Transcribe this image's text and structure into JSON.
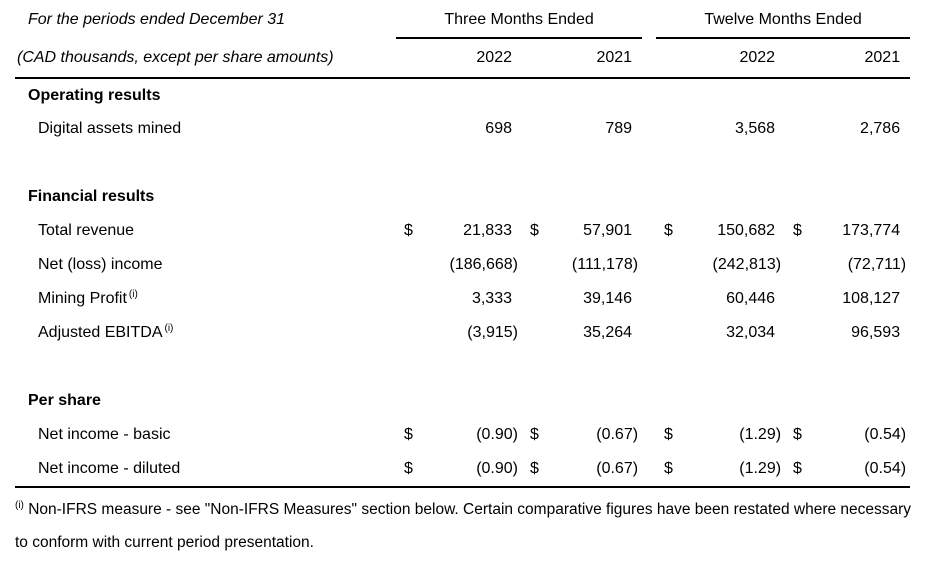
{
  "doc": {
    "header": {
      "period_label": "For the periods ended December 31",
      "units_label": "(CAD thousands, except per share amounts)",
      "col_groups": [
        {
          "label": "Three Months Ended"
        },
        {
          "label": "Twelve Months Ended"
        }
      ],
      "years": [
        "2022",
        "2021",
        "2022",
        "2021"
      ]
    },
    "sections": [
      {
        "title": "Operating results",
        "rows": [
          {
            "label": "Digital assets mined",
            "currency": [
              "",
              "",
              "",
              ""
            ],
            "values": [
              "698",
              "789",
              "3,568",
              "2,786"
            ]
          }
        ]
      },
      {
        "title": "Financial results",
        "rows": [
          {
            "label": "Total revenue",
            "currency": [
              "$",
              "$",
              "$",
              "$"
            ],
            "values": [
              "21,833",
              "57,901",
              "150,682",
              "173,774"
            ]
          },
          {
            "label": "Net (loss) income",
            "currency": [
              "",
              "",
              "",
              ""
            ],
            "values": [
              "(186,668)",
              "(111,178)",
              "(242,813)",
              "(72,711)"
            ]
          },
          {
            "label": "Mining Profit",
            "sup": "(i)",
            "currency": [
              "",
              "",
              "",
              ""
            ],
            "values": [
              "3,333",
              "39,146",
              "60,446",
              "108,127"
            ]
          },
          {
            "label": "Adjusted EBITDA",
            "sup": "(i)",
            "currency": [
              "",
              "",
              "",
              ""
            ],
            "values": [
              "(3,915)",
              "35,264",
              "32,034",
              "96,593"
            ]
          }
        ]
      },
      {
        "title": "Per share",
        "rows": [
          {
            "label": "Net income - basic",
            "currency": [
              "$",
              "$",
              "$",
              "$"
            ],
            "values": [
              "(0.90)",
              "(0.67)",
              "(1.29)",
              "(0.54)"
            ]
          },
          {
            "label": "Net income - diluted",
            "currency": [
              "$",
              "$",
              "$",
              "$"
            ],
            "values": [
              "(0.90)",
              "(0.67)",
              "(1.29)",
              "(0.54)"
            ]
          }
        ]
      }
    ],
    "footnote": {
      "marker": "(i)",
      "text": "Non-IFRS measure - see \"Non-IFRS Measures\" section below. Certain comparative figures have been restated where necessary to conform with current period presentation."
    }
  }
}
